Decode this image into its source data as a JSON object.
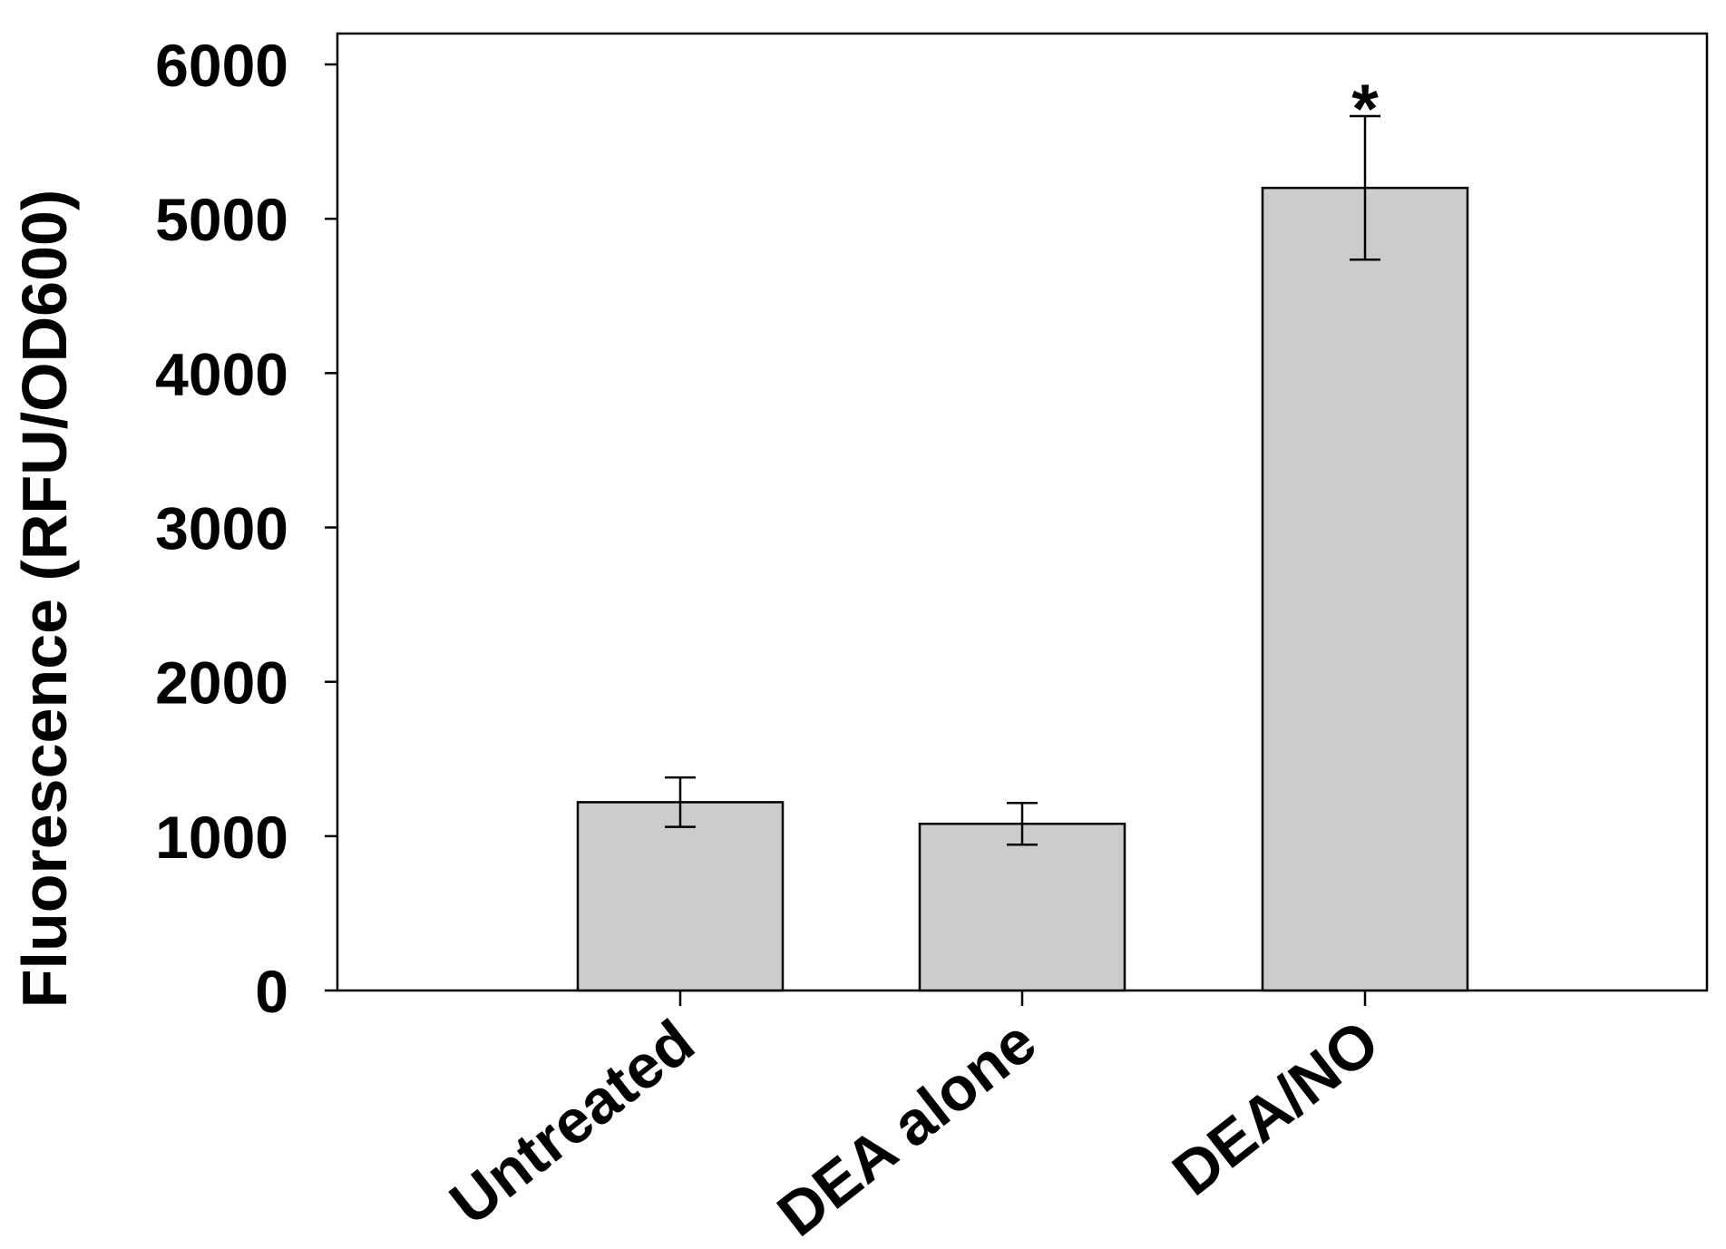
{
  "chart_data": {
    "type": "bar",
    "title": "",
    "xlabel": "",
    "ylabel": "Fluorescence (RFU/OD600)",
    "ylim": [
      0,
      6200
    ],
    "yticks": [
      0,
      1000,
      2000,
      3000,
      4000,
      5000,
      6000
    ],
    "ytick_labels": [
      "0",
      "1000",
      "2000",
      "3000",
      "4000",
      "5000",
      "6000"
    ],
    "categories": [
      "Untreated",
      "DEA alone",
      "DEA/NO"
    ],
    "values": [
      1220,
      1080,
      5200
    ],
    "errors": [
      160,
      135,
      465
    ],
    "annotations": [
      {
        "category": "DEA/NO",
        "text": "*"
      }
    ],
    "bar_color": "#cccccc",
    "grid": false,
    "legend": "none"
  }
}
